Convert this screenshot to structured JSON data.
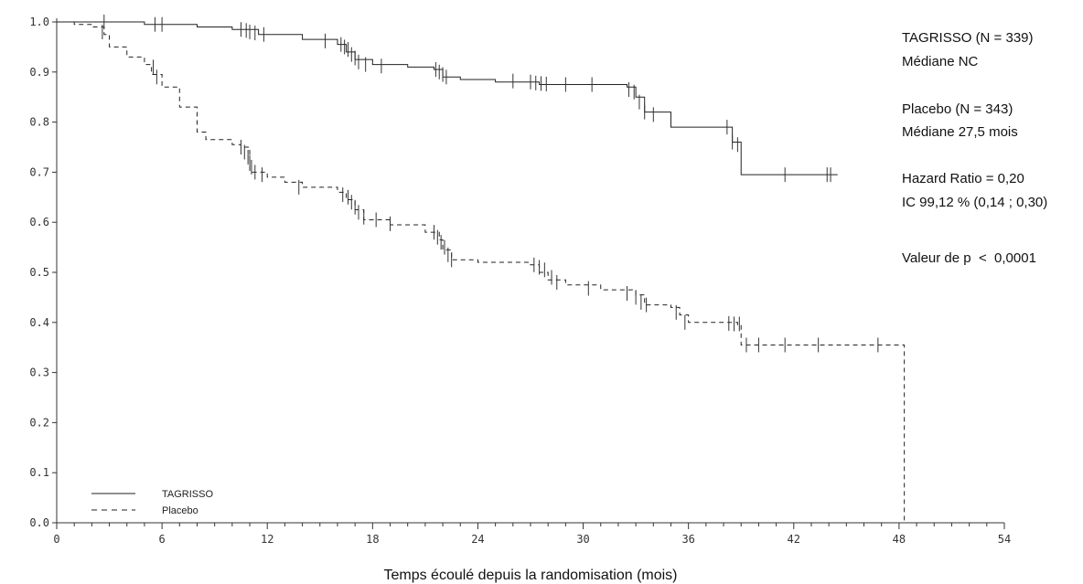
{
  "chart_data": {
    "type": "line",
    "title": "",
    "xlabel": "Temps écoulé depuis la randomisation (mois)",
    "ylabel": "",
    "xlim": [
      0,
      54
    ],
    "ylim": [
      0.0,
      1.0
    ],
    "x_ticks": [
      "0",
      "6",
      "12",
      "18",
      "24",
      "30",
      "36",
      "42",
      "48",
      "54"
    ],
    "y_ticks": [
      "0.0",
      "0.1",
      "0.2",
      "0.3",
      "0.4",
      "0.5",
      "0.6",
      "0.7",
      "0.8",
      "0.9",
      "1.0"
    ],
    "grid": false,
    "legend_position": "bottom-left",
    "series": [
      {
        "name": "TAGRISSO",
        "line_style": "solid",
        "color": "#222222",
        "steps": [
          [
            0,
            1.0
          ],
          [
            3,
            1.0
          ],
          [
            5,
            0.995
          ],
          [
            8,
            0.99
          ],
          [
            10,
            0.985
          ],
          [
            11.5,
            0.975
          ],
          [
            14,
            0.965
          ],
          [
            16,
            0.955
          ],
          [
            16.5,
            0.94
          ],
          [
            17,
            0.925
          ],
          [
            18,
            0.915
          ],
          [
            20,
            0.91
          ],
          [
            21.5,
            0.905
          ],
          [
            22,
            0.89
          ],
          [
            23,
            0.885
          ],
          [
            25,
            0.88
          ],
          [
            27.5,
            0.875
          ],
          [
            32.5,
            0.87
          ],
          [
            33,
            0.85
          ],
          [
            33.5,
            0.82
          ],
          [
            35,
            0.79
          ],
          [
            38.5,
            0.76
          ],
          [
            39,
            0.695
          ],
          [
            44.5,
            0.695
          ]
        ],
        "censored": [
          [
            2.7,
            1.0
          ],
          [
            5.6,
            0.995
          ],
          [
            6.0,
            0.995
          ],
          [
            10.5,
            0.985
          ],
          [
            10.8,
            0.983
          ],
          [
            11.0,
            0.98
          ],
          [
            11.3,
            0.978
          ],
          [
            11.8,
            0.975
          ],
          [
            15.3,
            0.962
          ],
          [
            16.2,
            0.955
          ],
          [
            16.4,
            0.95
          ],
          [
            16.6,
            0.945
          ],
          [
            16.8,
            0.935
          ],
          [
            17.0,
            0.928
          ],
          [
            17.2,
            0.92
          ],
          [
            17.6,
            0.915
          ],
          [
            18.5,
            0.912
          ],
          [
            21.6,
            0.905
          ],
          [
            21.8,
            0.9
          ],
          [
            22.0,
            0.895
          ],
          [
            22.2,
            0.89
          ],
          [
            26.0,
            0.882
          ],
          [
            27.0,
            0.88
          ],
          [
            27.3,
            0.878
          ],
          [
            27.6,
            0.877
          ],
          [
            27.9,
            0.876
          ],
          [
            29.0,
            0.875
          ],
          [
            30.5,
            0.875
          ],
          [
            32.6,
            0.865
          ],
          [
            32.9,
            0.86
          ],
          [
            33.2,
            0.84
          ],
          [
            33.5,
            0.82
          ],
          [
            34.0,
            0.815
          ],
          [
            38.2,
            0.79
          ],
          [
            38.5,
            0.76
          ],
          [
            38.8,
            0.755
          ],
          [
            41.5,
            0.695
          ],
          [
            43.9,
            0.695
          ],
          [
            44.1,
            0.695
          ]
        ]
      },
      {
        "name": "Placebo",
        "line_style": "dashed",
        "color": "#222222",
        "steps": [
          [
            0,
            1.0
          ],
          [
            1,
            0.995
          ],
          [
            2,
            0.99
          ],
          [
            2.7,
            0.975
          ],
          [
            3,
            0.95
          ],
          [
            4,
            0.93
          ],
          [
            5,
            0.915
          ],
          [
            5.4,
            0.895
          ],
          [
            6,
            0.87
          ],
          [
            7,
            0.83
          ],
          [
            8,
            0.78
          ],
          [
            8.5,
            0.765
          ],
          [
            10,
            0.755
          ],
          [
            10.5,
            0.75
          ],
          [
            11,
            0.7
          ],
          [
            12,
            0.69
          ],
          [
            13,
            0.68
          ],
          [
            14,
            0.67
          ],
          [
            16,
            0.66
          ],
          [
            16.5,
            0.645
          ],
          [
            17,
            0.625
          ],
          [
            17.5,
            0.605
          ],
          [
            19,
            0.595
          ],
          [
            21,
            0.58
          ],
          [
            21.8,
            0.565
          ],
          [
            22,
            0.545
          ],
          [
            22.5,
            0.525
          ],
          [
            24,
            0.52
          ],
          [
            27,
            0.515
          ],
          [
            27.5,
            0.5
          ],
          [
            28,
            0.485
          ],
          [
            29,
            0.475
          ],
          [
            31,
            0.465
          ],
          [
            33,
            0.455
          ],
          [
            33.5,
            0.435
          ],
          [
            35,
            0.43
          ],
          [
            35.5,
            0.415
          ],
          [
            36,
            0.4
          ],
          [
            38.8,
            0.395
          ],
          [
            39,
            0.355
          ],
          [
            48.3,
            0.355
          ],
          [
            48.3,
            0.0
          ]
        ],
        "censored": [
          [
            2.6,
            0.98
          ],
          [
            5.5,
            0.91
          ],
          [
            5.7,
            0.89
          ],
          [
            10.5,
            0.75
          ],
          [
            10.7,
            0.74
          ],
          [
            10.9,
            0.73
          ],
          [
            11.0,
            0.72
          ],
          [
            11.1,
            0.71
          ],
          [
            11.3,
            0.7
          ],
          [
            11.7,
            0.695
          ],
          [
            13.8,
            0.67
          ],
          [
            16.3,
            0.655
          ],
          [
            16.6,
            0.65
          ],
          [
            16.8,
            0.64
          ],
          [
            17.0,
            0.63
          ],
          [
            17.2,
            0.62
          ],
          [
            17.5,
            0.61
          ],
          [
            18.2,
            0.605
          ],
          [
            19.0,
            0.597
          ],
          [
            21.5,
            0.58
          ],
          [
            21.7,
            0.57
          ],
          [
            21.9,
            0.56
          ],
          [
            22.1,
            0.55
          ],
          [
            22.3,
            0.535
          ],
          [
            22.5,
            0.525
          ],
          [
            27.2,
            0.515
          ],
          [
            27.5,
            0.51
          ],
          [
            27.8,
            0.505
          ],
          [
            28.2,
            0.49
          ],
          [
            28.5,
            0.48
          ],
          [
            30.3,
            0.468
          ],
          [
            32.5,
            0.458
          ],
          [
            33.0,
            0.45
          ],
          [
            33.3,
            0.44
          ],
          [
            33.6,
            0.435
          ],
          [
            35.3,
            0.42
          ],
          [
            35.8,
            0.4
          ],
          [
            38.3,
            0.398
          ],
          [
            38.6,
            0.397
          ],
          [
            38.9,
            0.397
          ],
          [
            39.3,
            0.355
          ],
          [
            40.0,
            0.355
          ],
          [
            41.5,
            0.355
          ],
          [
            43.4,
            0.355
          ],
          [
            46.8,
            0.355
          ]
        ]
      }
    ],
    "annotations": [
      "TAGRISSO (N = 339)",
      "Médiane NC",
      "Placebo (N = 343)",
      "Médiane 27,5 mois",
      "Hazard Ratio = 0,20",
      "IC 99,12 % (0,14 ; 0,30)",
      "Valeur de p  <  0,0001"
    ],
    "legend": [
      {
        "label": "TAGRISSO",
        "line_style": "solid"
      },
      {
        "label": "Placebo",
        "line_style": "dashed"
      }
    ]
  }
}
